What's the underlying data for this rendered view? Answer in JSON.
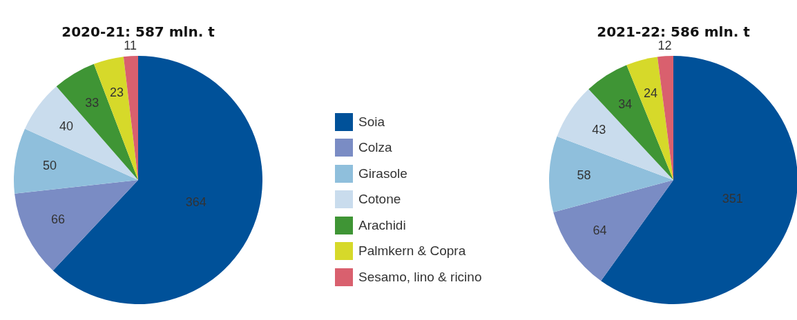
{
  "chart_data": [
    {
      "type": "pie",
      "title": "2020-21: 587 mln. t",
      "categories": [
        "Soia",
        "Colza",
        "Girasole",
        "Cotone",
        "Arachidi",
        "Palmkern & Copra",
        "Sesamo, lino & ricino"
      ],
      "values": [
        364,
        66,
        50,
        40,
        33,
        23,
        11
      ],
      "colors": [
        "#005199",
        "#7a8cc4",
        "#8fbfdc",
        "#c9dced",
        "#3f9535",
        "#d6d92a",
        "#d9606e"
      ],
      "data_labels": true,
      "legend": "right"
    },
    {
      "type": "pie",
      "title": "2021-22: 586 mln. t",
      "categories": [
        null,
        null,
        null,
        null,
        null,
        null,
        null
      ],
      "values": [
        351,
        64,
        58,
        43,
        34,
        24,
        12
      ],
      "colors": [
        "#005199",
        "#7a8cc4",
        "#8fbfdc",
        "#c9dced",
        "#3f9535",
        "#d6d92a",
        "#d9606e"
      ],
      "data_labels": true,
      "legend": false
    }
  ]
}
